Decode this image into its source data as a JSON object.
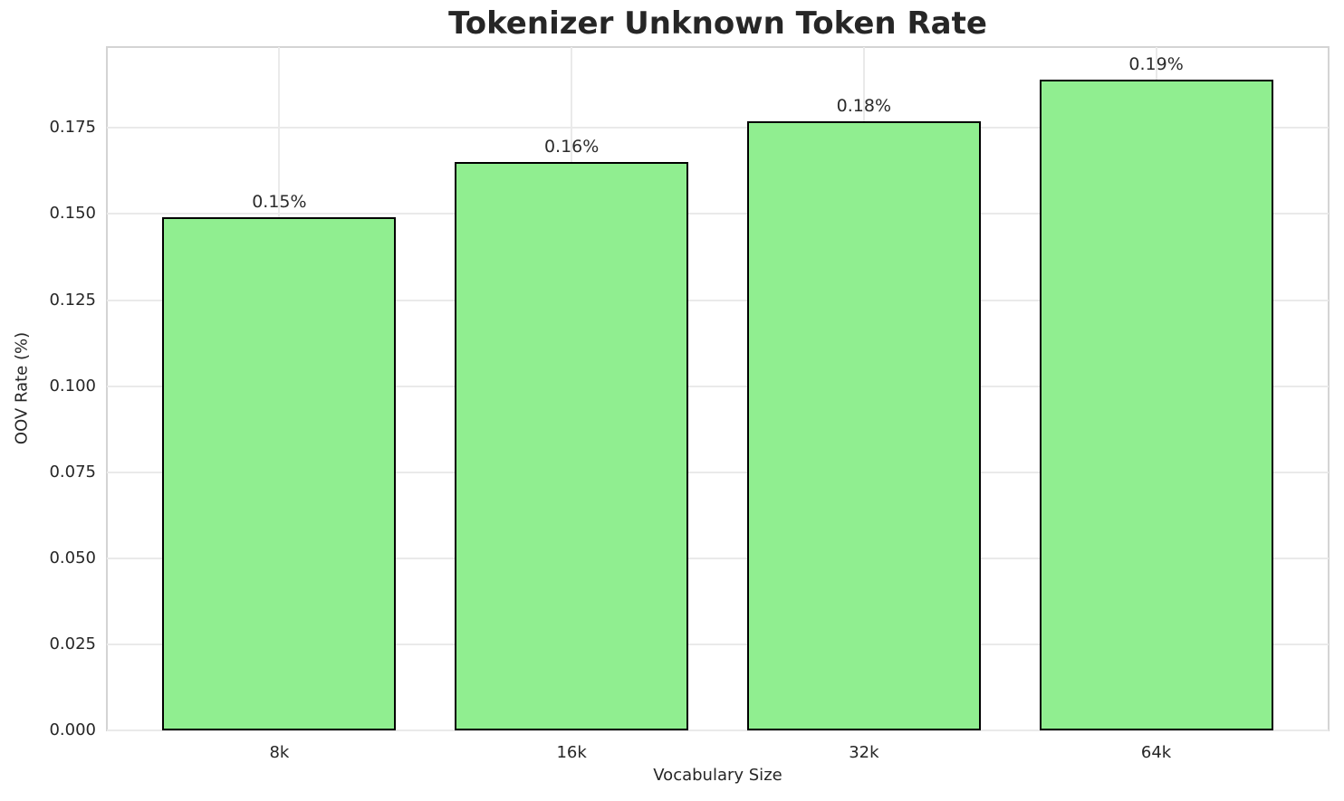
{
  "chart_data": {
    "type": "bar",
    "title": "Tokenizer Unknown Token Rate",
    "xlabel": "Vocabulary Size",
    "ylabel": "OOV Rate (%)",
    "categories": [
      "8k",
      "16k",
      "32k",
      "64k"
    ],
    "values": [
      0.149,
      0.165,
      0.177,
      0.189
    ],
    "bar_labels": [
      "0.15%",
      "0.16%",
      "0.18%",
      "0.19%"
    ],
    "ylim": [
      0,
      0.1985
    ],
    "yticks": [
      0.0,
      0.025,
      0.05,
      0.075,
      0.1,
      0.125,
      0.15,
      0.175
    ],
    "ytick_labels": [
      "0.000",
      "0.025",
      "0.050",
      "0.075",
      "0.100",
      "0.125",
      "0.150",
      "0.175"
    ],
    "grid": true,
    "legend_position": "none",
    "bar_color": "#90EE90",
    "bar_edge_color": "#000000"
  }
}
